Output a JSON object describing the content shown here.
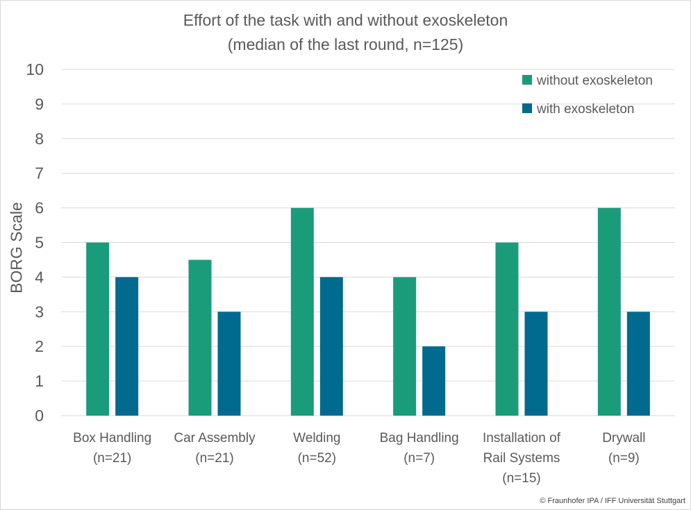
{
  "colors": {
    "without": "#1a9c7b",
    "with": "#006a8f",
    "grid": "#d9d9d9",
    "text": "#595959"
  },
  "credit": "© Fraunhofer IPA / IFF Universität Stuttgart",
  "chart_data": {
    "type": "bar",
    "title": [
      "Effort of the task with and without exoskeleton",
      "(median of the last round, n=125)"
    ],
    "ylabel": "BORG Scale",
    "xlabel": "",
    "ylim": [
      0,
      10
    ],
    "yticks": [
      "0",
      "1",
      "2",
      "3",
      "4",
      "5",
      "6",
      "7",
      "8",
      "9",
      "10"
    ],
    "grid": true,
    "legend_position": "top-right",
    "categories": [
      [
        "Box Handling",
        "(n=21)"
      ],
      [
        "Car Assembly",
        "(n=21)"
      ],
      [
        "Welding",
        "(n=52)"
      ],
      [
        "Bag Handling",
        "(n=7)"
      ],
      [
        "Installation of",
        "Rail Systems",
        "(n=15)"
      ],
      [
        "Drywall",
        "(n=9)"
      ]
    ],
    "series": [
      {
        "name": "without exoskeleton",
        "values": [
          5,
          4.5,
          6,
          4,
          5,
          6
        ]
      },
      {
        "name": "with exoskeleton",
        "values": [
          4,
          3,
          4,
          2,
          3,
          3
        ]
      }
    ]
  }
}
